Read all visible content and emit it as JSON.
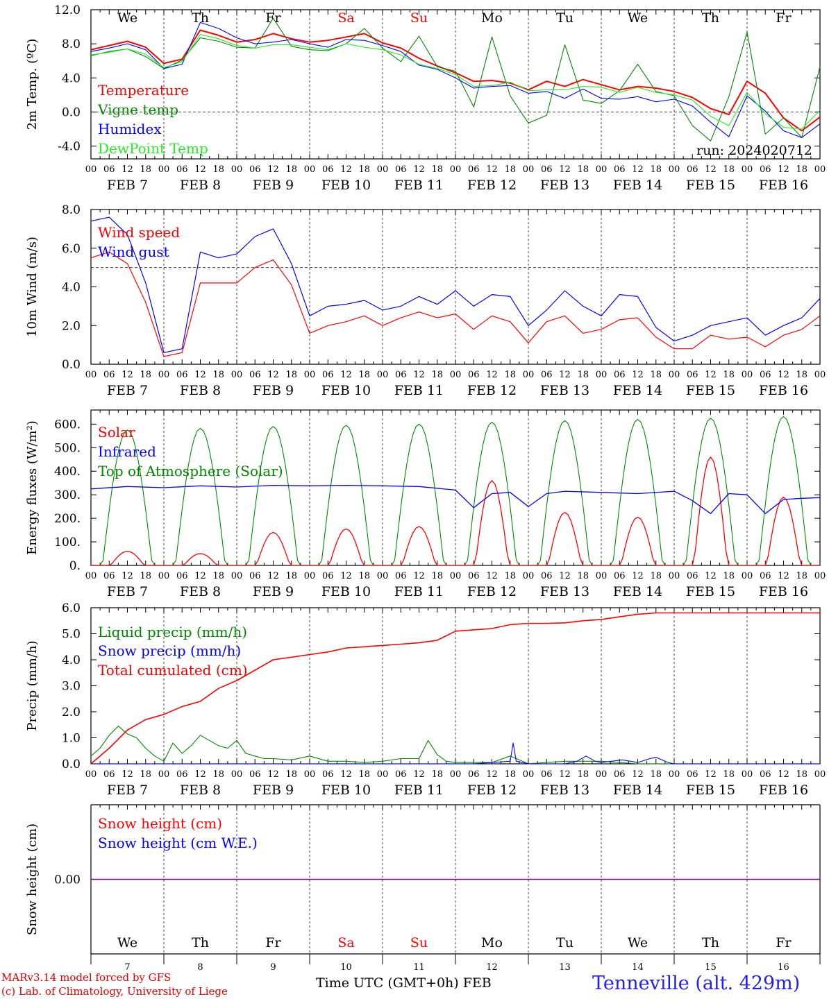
{
  "station": "Tenneville (alt. 429m)",
  "x_axis_title": "Time UTC (GMT+0h) FEB",
  "credits": [
    "MARv3.14 model forced by GFS",
    "(c) Lab. of Climatology, University of Liege"
  ],
  "weekdays": [
    {
      "label": "We",
      "weekend": false
    },
    {
      "label": "Th",
      "weekend": false
    },
    {
      "label": "Fr",
      "weekend": false
    },
    {
      "label": "Sa",
      "weekend": true
    },
    {
      "label": "Su",
      "weekend": true
    },
    {
      "label": "Mo",
      "weekend": false
    },
    {
      "label": "Tu",
      "weekend": false
    },
    {
      "label": "We",
      "weekend": false
    },
    {
      "label": "Th",
      "weekend": false
    },
    {
      "label": "Fr",
      "weekend": false
    }
  ],
  "date_labels": [
    "FEB 7",
    "FEB 8",
    "FEB 9",
    "FEB 10",
    "FEB 11",
    "FEB 12",
    "FEB 13",
    "FEB 14",
    "FEB 15",
    "FEB 16"
  ],
  "bottom_day_numbers": [
    "7",
    "8",
    "9",
    "10",
    "11",
    "12",
    "13",
    "14",
    "15",
    "16"
  ],
  "hour_ticks": [
    "00",
    "06",
    "12",
    "18"
  ],
  "colors": {
    "red": "#ff0000",
    "green": "#008800",
    "blue": "#0000ff",
    "lightgreen": "#22ee22",
    "weekend": "#ff0000",
    "axis": "#000000",
    "purple": "#8800aa",
    "dash": "#444444"
  },
  "chart_data": [
    {
      "type": "line",
      "ylabel": "2m Temp. (ºC)",
      "ylim": [
        -5.5,
        12.0
      ],
      "yticks": [
        12.0,
        8.0,
        4.0,
        0.0,
        -4.0
      ],
      "ytick_labels": [
        "12.0",
        "8.0",
        "4.0",
        "0.0",
        "-4.0"
      ],
      "reference_line": 0.0,
      "annotation": "run: 2024020712",
      "x_unit": "hours since FEB 7 00 UTC",
      "x": [
        0,
        6,
        12,
        18,
        24,
        30,
        36,
        42,
        48,
        54,
        60,
        66,
        72,
        78,
        84,
        90,
        96,
        102,
        108,
        114,
        120,
        126,
        132,
        138,
        144,
        150,
        156,
        162,
        168,
        174,
        180,
        186,
        192,
        198,
        204,
        210,
        216,
        222,
        228,
        234,
        240
      ],
      "series": [
        {
          "name": "Temperature",
          "color": "red",
          "values": [
            7.3,
            7.8,
            8.3,
            7.6,
            5.7,
            6.2,
            9.6,
            9.0,
            8.2,
            8.5,
            9.2,
            8.6,
            8.2,
            8.4,
            8.8,
            9.2,
            8.1,
            7.5,
            6.3,
            5.4,
            4.6,
            3.6,
            3.7,
            3.4,
            2.6,
            3.6,
            3.0,
            3.8,
            3.2,
            2.6,
            3.0,
            2.8,
            2.4,
            1.7,
            0.4,
            -0.3,
            3.6,
            2.2,
            -0.7,
            -2.2,
            -0.6
          ]
        },
        {
          "name": "Vigne temp",
          "color": "green",
          "values": [
            6.6,
            7.1,
            7.4,
            6.5,
            5.1,
            6.1,
            8.7,
            8.3,
            7.6,
            7.5,
            11.0,
            7.7,
            7.3,
            7.2,
            8.0,
            9.8,
            7.5,
            5.9,
            8.9,
            5.3,
            4.8,
            0.6,
            8.8,
            1.9,
            -1.3,
            -0.4,
            7.9,
            1.4,
            1.0,
            2.5,
            5.6,
            2.4,
            1.9,
            -1.6,
            -3.4,
            1.8,
            9.4,
            -2.6,
            -0.7,
            -3.0,
            5.3
          ]
        },
        {
          "name": "Humidex",
          "color": "blue",
          "values": [
            7.1,
            7.5,
            8.0,
            7.3,
            5.1,
            5.6,
            10.5,
            9.8,
            8.7,
            8.0,
            8.2,
            8.5,
            8.0,
            7.6,
            8.5,
            8.4,
            7.8,
            7.1,
            5.5,
            5.0,
            4.0,
            2.8,
            3.0,
            3.1,
            2.2,
            2.4,
            1.6,
            2.7,
            1.6,
            1.5,
            1.8,
            1.2,
            1.5,
            0.7,
            -1.2,
            -2.9,
            1.9,
            0.1,
            -2.2,
            -3.0,
            -1.4
          ]
        },
        {
          "name": "DewPoint Temp",
          "color": "lightgreen",
          "values": [
            6.7,
            7.0,
            7.4,
            6.8,
            5.2,
            5.9,
            9.1,
            8.6,
            7.8,
            7.5,
            7.9,
            7.9,
            7.6,
            7.3,
            8.0,
            7.6,
            7.3,
            6.7,
            5.6,
            5.1,
            4.4,
            3.0,
            3.1,
            3.5,
            2.5,
            2.6,
            2.6,
            3.0,
            2.9,
            2.3,
            2.9,
            2.3,
            2.0,
            1.4,
            -0.5,
            -1.6,
            2.3,
            -0.2,
            -1.8,
            -2.0,
            0.2
          ]
        }
      ]
    },
    {
      "type": "line",
      "ylabel": "10m Wind (m/s)",
      "ylim": [
        0,
        8.0
      ],
      "yticks": [
        8.0,
        6.0,
        4.0,
        2.0,
        0.0
      ],
      "ytick_labels": [
        "8.0",
        "6.0",
        "4.0",
        "2.0",
        "0.0"
      ],
      "reference_line": 5.0,
      "x": [
        0,
        6,
        12,
        18,
        24,
        30,
        36,
        42,
        48,
        54,
        60,
        66,
        72,
        78,
        84,
        90,
        96,
        102,
        108,
        114,
        120,
        126,
        132,
        138,
        144,
        150,
        156,
        162,
        168,
        174,
        180,
        186,
        192,
        198,
        204,
        210,
        216,
        222,
        228,
        234,
        240
      ],
      "series": [
        {
          "name": "Wind speed",
          "color": "red",
          "values": [
            5.5,
            5.8,
            5.2,
            3.2,
            0.4,
            0.6,
            4.2,
            4.2,
            4.2,
            5.0,
            5.4,
            4.1,
            1.6,
            2.0,
            2.2,
            2.5,
            2.0,
            2.4,
            2.7,
            2.4,
            2.6,
            1.8,
            2.5,
            2.2,
            1.1,
            2.2,
            2.5,
            1.6,
            1.8,
            2.3,
            2.4,
            1.4,
            0.8,
            0.8,
            1.5,
            1.3,
            1.4,
            0.9,
            1.5,
            1.8,
            2.5
          ]
        },
        {
          "name": "Wind gust",
          "color": "blue",
          "values": [
            7.4,
            7.6,
            6.7,
            4.2,
            0.6,
            0.8,
            5.8,
            5.5,
            5.7,
            6.6,
            7.0,
            5.2,
            2.5,
            3.0,
            3.1,
            3.3,
            2.8,
            3.0,
            3.5,
            3.1,
            3.8,
            3.0,
            3.6,
            3.5,
            2.0,
            2.8,
            3.8,
            3.0,
            2.5,
            3.6,
            3.5,
            1.9,
            1.2,
            1.5,
            2.0,
            2.2,
            2.4,
            1.5,
            2.0,
            2.4,
            3.4
          ]
        }
      ]
    },
    {
      "type": "line",
      "ylabel": "Energy fluxes (W/m²)",
      "ylim": [
        0,
        660
      ],
      "yticks": [
        600,
        500,
        400,
        300,
        200,
        100,
        0
      ],
      "ytick_labels": [
        "600.",
        "500.",
        "400.",
        "300.",
        "200.",
        "100.",
        "0."
      ],
      "day_noon_peaks": {
        "Top of Atmosphere (Solar)": [
          575,
          582,
          590,
          595,
          600,
          608,
          615,
          620,
          625,
          632
        ],
        "Solar": [
          60,
          50,
          140,
          155,
          165,
          360,
          225,
          205,
          460,
          290
        ]
      },
      "series": [
        {
          "name": "Solar",
          "color": "red"
        },
        {
          "name": "Infrared",
          "color": "blue",
          "x": [
            0,
            12,
            24,
            36,
            48,
            60,
            72,
            84,
            96,
            108,
            120,
            126,
            132,
            138,
            144,
            150,
            156,
            168,
            180,
            192,
            198,
            204,
            210,
            216,
            222,
            228,
            234,
            240
          ],
          "values": [
            325,
            335,
            330,
            338,
            333,
            340,
            338,
            340,
            338,
            335,
            320,
            245,
            305,
            310,
            250,
            305,
            315,
            310,
            305,
            315,
            275,
            220,
            305,
            300,
            220,
            280,
            285,
            288
          ]
        },
        {
          "name": "Top of Atmosphere (Solar)",
          "color": "green"
        }
      ]
    },
    {
      "type": "line",
      "ylabel": "Precip (mm/h)",
      "ylim": [
        0,
        6.0
      ],
      "yticks": [
        6.0,
        5.0,
        4.0,
        3.0,
        2.0,
        1.0,
        0.0
      ],
      "ytick_labels": [
        "6.0",
        "5.0",
        "4.0",
        "3.0",
        "2.0",
        "1.0",
        "0.0"
      ],
      "series": [
        {
          "name": "Liquid precip (mm/h)",
          "color": "green",
          "x": [
            0,
            3,
            6,
            9,
            12,
            15,
            18,
            21,
            24,
            27,
            30,
            33,
            36,
            39,
            42,
            45,
            48,
            51,
            54,
            57,
            60,
            66,
            72,
            78,
            84,
            90,
            96,
            102,
            108,
            111,
            114,
            117,
            120,
            126,
            132,
            138,
            144,
            150,
            156,
            168,
            180,
            192,
            204,
            216,
            228,
            240
          ],
          "values": [
            0.3,
            0.6,
            1.1,
            1.45,
            1.15,
            1.0,
            0.6,
            0.3,
            0.1,
            0.8,
            0.4,
            0.7,
            1.1,
            0.9,
            0.7,
            0.6,
            0.9,
            0.4,
            0.3,
            0.2,
            0.2,
            0.15,
            0.3,
            0.1,
            0.1,
            0.05,
            0.1,
            0.2,
            0.2,
            0.9,
            0.35,
            0.1,
            0.05,
            0.05,
            0.05,
            0.3,
            0.0,
            0.05,
            0.1,
            0.1,
            0.0,
            0.0,
            0.0,
            0.0,
            0.0,
            0.0
          ]
        },
        {
          "name": "Snow precip (mm/h)",
          "color": "blue",
          "x": [
            0,
            120,
            126,
            132,
            138,
            139,
            140,
            144,
            156,
            160,
            163,
            166,
            168,
            175,
            180,
            184,
            186,
            190,
            192,
            240
          ],
          "values": [
            0,
            0,
            0,
            0.05,
            0.1,
            0.8,
            0.1,
            0,
            0,
            0.1,
            0.3,
            0.1,
            0.05,
            0.15,
            0.05,
            0.2,
            0.25,
            0.05,
            0,
            0
          ]
        },
        {
          "name": "Total cumulated (cm)",
          "color": "red",
          "x": [
            0,
            6,
            12,
            18,
            24,
            30,
            36,
            42,
            48,
            54,
            60,
            66,
            72,
            78,
            84,
            90,
            96,
            102,
            108,
            114,
            120,
            126,
            132,
            138,
            144,
            150,
            156,
            162,
            168,
            174,
            180,
            186,
            192,
            198,
            204,
            210,
            216,
            222,
            228,
            234,
            240
          ],
          "values": [
            0.0,
            0.6,
            1.3,
            1.7,
            1.9,
            2.2,
            2.4,
            2.9,
            3.2,
            3.6,
            4.0,
            4.1,
            4.2,
            4.3,
            4.45,
            4.5,
            4.55,
            4.6,
            4.65,
            4.75,
            5.1,
            5.15,
            5.2,
            5.35,
            5.4,
            5.4,
            5.42,
            5.5,
            5.55,
            5.65,
            5.75,
            5.8,
            5.8,
            5.8,
            5.8,
            5.8,
            5.8,
            5.8,
            5.8,
            5.8,
            5.8
          ]
        }
      ]
    },
    {
      "type": "line",
      "ylabel": "Snow height (cm)",
      "ylim": [
        -1,
        1
      ],
      "yticks": [
        0.0
      ],
      "ytick_labels": [
        "0.00"
      ],
      "x": [
        0,
        240
      ],
      "series": [
        {
          "name": "Snow height (cm)",
          "color": "red",
          "values": [
            0,
            0
          ]
        },
        {
          "name": "Snow height (cm W.E.)",
          "color": "blue",
          "values": [
            0,
            0
          ]
        }
      ]
    }
  ]
}
